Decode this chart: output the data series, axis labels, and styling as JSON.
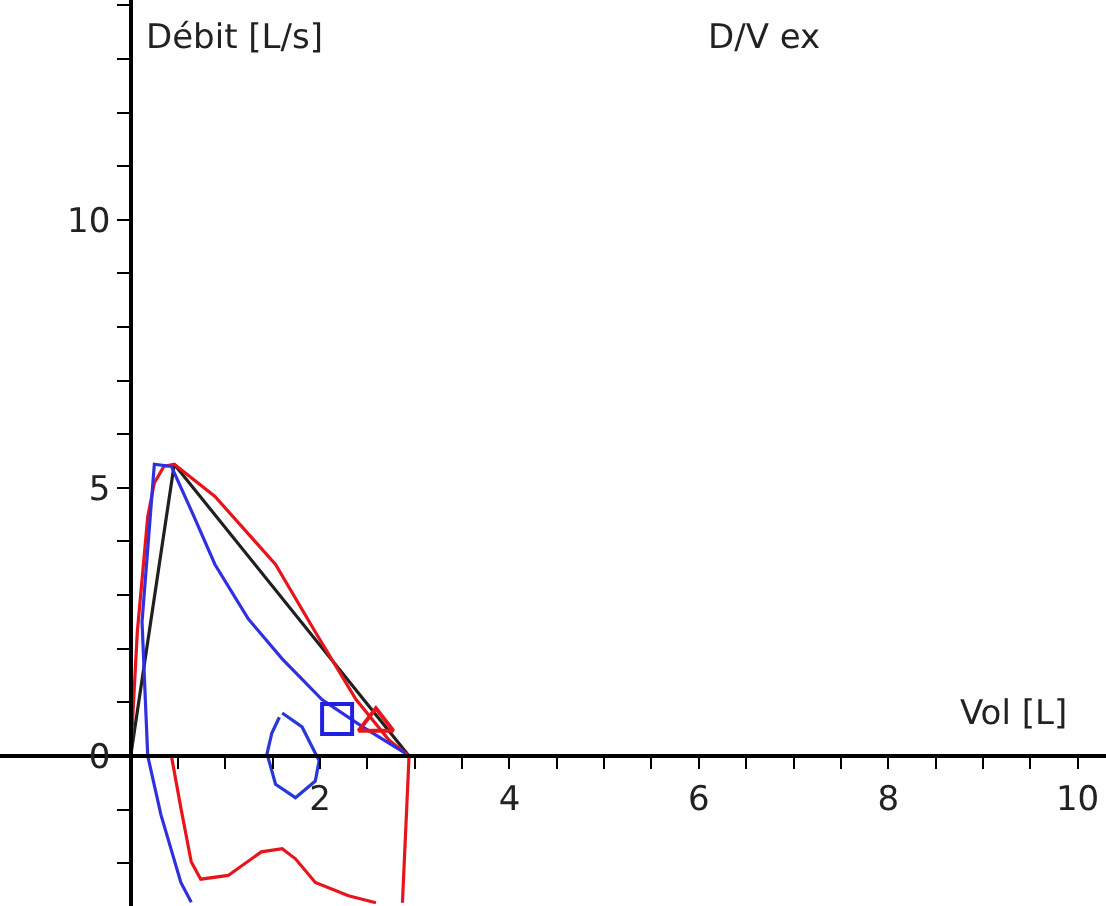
{
  "chart_data": {
    "type": "line",
    "title": "D/V ex",
    "xlabel": "Vol [L]",
    "ylabel": "Débit [L/s]",
    "xlim": [
      -1.38,
      10.3
    ],
    "ylim": [
      -2.8,
      14.1
    ],
    "xticks": [
      {
        "value": 0.5,
        "label": null
      },
      {
        "value": 1,
        "label": null
      },
      {
        "value": 1.5,
        "label": null
      },
      2,
      {
        "value": 2.5,
        "label": null
      },
      {
        "value": 3,
        "label": null
      },
      {
        "value": 3.5,
        "label": null
      },
      4,
      {
        "value": 4.5,
        "label": null
      },
      {
        "value": 5,
        "label": null
      },
      {
        "value": 5.5,
        "label": null
      },
      6,
      {
        "value": 6.5,
        "label": null
      },
      {
        "value": 7,
        "label": null
      },
      {
        "value": 7.5,
        "label": null
      },
      8,
      {
        "value": 8.5,
        "label": null
      },
      {
        "value": 9,
        "label": null
      },
      {
        "value": 9.5,
        "label": null
      },
      10
    ],
    "yticks": [
      {
        "value": -2,
        "label": null
      },
      {
        "value": -1,
        "label": null
      },
      0,
      {
        "value": 1,
        "label": null
      },
      {
        "value": 2,
        "label": null
      },
      {
        "value": 3,
        "label": null
      },
      {
        "value": 4,
        "label": null
      },
      5,
      {
        "value": 6,
        "label": null
      },
      {
        "value": 7,
        "label": null
      },
      {
        "value": 8,
        "label": null
      },
      {
        "value": 9,
        "label": null
      },
      10,
      {
        "value": 11,
        "label": null
      },
      {
        "value": 12,
        "label": null
      },
      {
        "value": 13,
        "label": null
      },
      {
        "value": 14,
        "label": null
      }
    ],
    "marker": "none",
    "line_style": "solid",
    "series": [
      {
        "color": "#202020",
        "x": [
          0,
          0.46,
          2.94
        ],
        "values": [
          0,
          5.44,
          0
        ]
      },
      {
        "color": "#e8141c",
        "x": [
          0,
          0.07,
          0.18,
          0.25,
          0.35,
          0.46,
          0.89,
          1.53,
          1.95,
          2.38,
          2.73,
          2.94,
          2.87,
          null,
          2.59,
          2.3,
          1.95,
          1.74,
          1.6,
          1.38,
          1.03,
          0.74,
          0.64,
          0.53,
          0.43
        ],
        "values": [
          0,
          2.31,
          4.46,
          5.09,
          5.4,
          5.44,
          4.84,
          3.57,
          2.31,
          1.05,
          0.29,
          0,
          -2.74,
          null,
          -2.74,
          -2.61,
          -2.36,
          -1.92,
          -1.73,
          -1.79,
          -2.23,
          -2.3,
          -1.98,
          -0.97,
          0
        ]
      },
      {
        "color": "#3030e0",
        "x": [
          0.64,
          0.53,
          0.32,
          0.18,
          0.12,
          0.25,
          0.43,
          0.67,
          0.89,
          1.24,
          1.6,
          2.02,
          2.45,
          2.8,
          2.9
        ],
        "values": [
          -2.73,
          -2.36,
          -1.1,
          0,
          2.5,
          5.44,
          5.4,
          4.46,
          3.57,
          2.56,
          1.81,
          1.05,
          0.54,
          0.16,
          0.05
        ]
      },
      {
        "color": "#2838d8",
        "x": [
          1.6,
          1.81,
          1.99,
          1.95,
          1.74,
          1.53,
          1.44,
          1.49,
          1.57
        ],
        "values": [
          0.8,
          0.54,
          -0.09,
          -0.47,
          -0.78,
          -0.53,
          0.04,
          0.42,
          0.72
        ]
      },
      {
        "type": "scatter",
        "marker": "square",
        "color": "#2020e0",
        "x": [
          2.18
        ],
        "values": [
          0.69
        ]
      },
      {
        "type": "scatter",
        "marker": "triangle",
        "color": "#e8141c",
        "x": [
          2.59
        ],
        "values": [
          0.61
        ]
      }
    ]
  }
}
